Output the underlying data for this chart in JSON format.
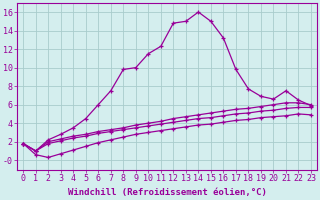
{
  "xlabel": "Windchill (Refroidissement éolien,°C)",
  "background_color": "#d4eeee",
  "grid_color": "#a8cccc",
  "line_color": "#990099",
  "x_values": [
    0,
    1,
    2,
    3,
    4,
    5,
    6,
    7,
    8,
    9,
    10,
    11,
    12,
    13,
    14,
    15,
    16,
    17,
    18,
    19,
    20,
    21,
    22,
    23
  ],
  "series1": [
    1.8,
    1.0,
    2.2,
    2.8,
    3.5,
    4.5,
    6.0,
    7.5,
    9.8,
    10.0,
    11.5,
    12.3,
    14.8,
    15.0,
    16.0,
    15.0,
    13.2,
    9.8,
    7.7,
    6.9,
    6.6,
    7.5,
    6.5,
    5.9
  ],
  "series2": [
    1.8,
    1.0,
    2.0,
    2.3,
    2.6,
    2.8,
    3.1,
    3.3,
    3.5,
    3.8,
    4.0,
    4.2,
    4.5,
    4.7,
    4.9,
    5.1,
    5.3,
    5.5,
    5.6,
    5.8,
    6.0,
    6.2,
    6.2,
    6.0
  ],
  "series3": [
    1.8,
    1.0,
    1.8,
    2.1,
    2.4,
    2.6,
    2.9,
    3.1,
    3.3,
    3.5,
    3.7,
    3.9,
    4.1,
    4.3,
    4.5,
    4.6,
    4.8,
    5.0,
    5.1,
    5.3,
    5.4,
    5.6,
    5.7,
    5.7
  ],
  "series4": [
    1.8,
    0.6,
    0.3,
    0.7,
    1.1,
    1.5,
    1.9,
    2.2,
    2.5,
    2.8,
    3.0,
    3.2,
    3.4,
    3.6,
    3.8,
    3.9,
    4.1,
    4.3,
    4.4,
    4.6,
    4.7,
    4.8,
    5.0,
    4.9
  ],
  "ylim": [
    -1.0,
    17.0
  ],
  "xlim": [
    -0.5,
    23.5
  ],
  "yticks": [
    0,
    2,
    4,
    6,
    8,
    10,
    12,
    14,
    16
  ],
  "ytick_labels": [
    "-0",
    "2",
    "4",
    "6",
    "8",
    "10",
    "12",
    "14",
    "16"
  ],
  "xticks": [
    0,
    1,
    2,
    3,
    4,
    5,
    6,
    7,
    8,
    9,
    10,
    11,
    12,
    13,
    14,
    15,
    16,
    17,
    18,
    19,
    20,
    21,
    22,
    23
  ],
  "xlabel_fontsize": 6.5,
  "tick_fontsize": 6.0,
  "marker": "+",
  "markersize": 3.5,
  "linewidth": 0.9
}
